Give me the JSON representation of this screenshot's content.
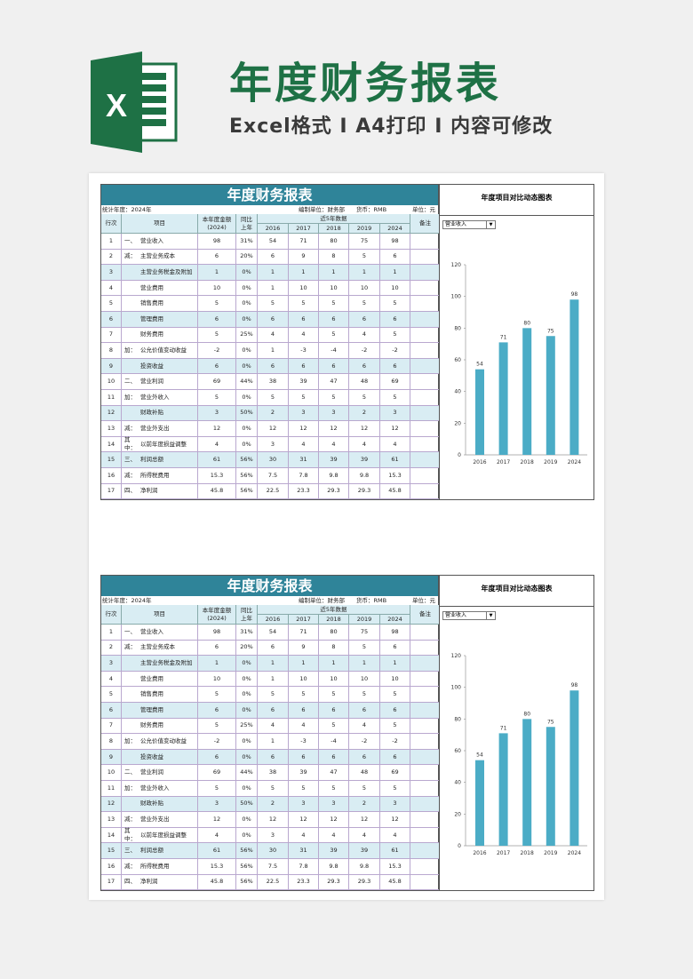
{
  "header": {
    "title": "年度财务报表",
    "subtitle": "Excel格式 I A4打印 I 内容可修改",
    "logo_letter": "X",
    "brand_color": "#1e7145"
  },
  "report": {
    "title": "年度财务报表",
    "stat_year": "统计年度：2024年",
    "unit_org": "编制单位：财务部",
    "currency": "货币：RMB",
    "unit": "单位：元",
    "columns": {
      "no": "行次",
      "item": "项目",
      "amount_l1": "本年度金额",
      "amount_l2": "(2024)",
      "yoy_l1": "同比",
      "yoy_l2": "上年",
      "recent": "近5年数据",
      "years": [
        "2016",
        "2017",
        "2018",
        "2019",
        "2024"
      ],
      "remark": "备注"
    },
    "rows": [
      {
        "no": "1",
        "prefix": "一、",
        "item": "营业收入",
        "amount": "98",
        "yoy": "31%",
        "vals": [
          "54",
          "71",
          "80",
          "75",
          "98"
        ]
      },
      {
        "no": "2",
        "prefix": "减：",
        "item": "主营业务成本",
        "amount": "6",
        "yoy": "20%",
        "vals": [
          "6",
          "9",
          "8",
          "5",
          "6"
        ]
      },
      {
        "no": "3",
        "prefix": "",
        "item": "主营业务税金及附加",
        "amount": "1",
        "yoy": "0%",
        "vals": [
          "1",
          "1",
          "1",
          "1",
          "1"
        ]
      },
      {
        "no": "4",
        "prefix": "",
        "item": "营业费用",
        "amount": "10",
        "yoy": "0%",
        "vals": [
          "1",
          "10",
          "10",
          "10",
          "10"
        ]
      },
      {
        "no": "5",
        "prefix": "",
        "item": "销售费用",
        "amount": "5",
        "yoy": "0%",
        "vals": [
          "5",
          "5",
          "5",
          "5",
          "5"
        ]
      },
      {
        "no": "6",
        "prefix": "",
        "item": "管理费用",
        "amount": "6",
        "yoy": "0%",
        "vals": [
          "6",
          "6",
          "6",
          "6",
          "6"
        ]
      },
      {
        "no": "7",
        "prefix": "",
        "item": "财务费用",
        "amount": "5",
        "yoy": "25%",
        "vals": [
          "4",
          "4",
          "5",
          "4",
          "5"
        ]
      },
      {
        "no": "8",
        "prefix": "加：",
        "item": "公允价值变动收益",
        "amount": "-2",
        "yoy": "0%",
        "vals": [
          "1",
          "-3",
          "-4",
          "-2",
          "-2"
        ]
      },
      {
        "no": "9",
        "prefix": "",
        "item": "投资收益",
        "amount": "6",
        "yoy": "0%",
        "vals": [
          "6",
          "6",
          "6",
          "6",
          "6"
        ]
      },
      {
        "no": "10",
        "prefix": "二、",
        "item": "营业利润",
        "amount": "69",
        "yoy": "44%",
        "vals": [
          "38",
          "39",
          "47",
          "48",
          "69"
        ]
      },
      {
        "no": "11",
        "prefix": "加：",
        "item": "营业外收入",
        "amount": "5",
        "yoy": "0%",
        "vals": [
          "5",
          "5",
          "5",
          "5",
          "5"
        ]
      },
      {
        "no": "12",
        "prefix": "",
        "item": "财政补贴",
        "amount": "3",
        "yoy": "50%",
        "vals": [
          "2",
          "3",
          "3",
          "2",
          "3"
        ]
      },
      {
        "no": "13",
        "prefix": "减：",
        "item": "营业外支出",
        "amount": "12",
        "yoy": "0%",
        "vals": [
          "12",
          "12",
          "12",
          "12",
          "12"
        ]
      },
      {
        "no": "14",
        "prefix": "其中：",
        "item": "以前年度损益调整",
        "amount": "4",
        "yoy": "0%",
        "vals": [
          "3",
          "4",
          "4",
          "4",
          "4"
        ]
      },
      {
        "no": "15",
        "prefix": "三、",
        "item": "利润总额",
        "amount": "61",
        "yoy": "56%",
        "vals": [
          "30",
          "31",
          "39",
          "39",
          "61"
        ]
      },
      {
        "no": "16",
        "prefix": "减：",
        "item": "所得税费用",
        "amount": "15.3",
        "yoy": "56%",
        "vals": [
          "7.5",
          "7.8",
          "9.8",
          "9.8",
          "15.3"
        ]
      },
      {
        "no": "17",
        "prefix": "四、",
        "item": "净利润",
        "amount": "45.8",
        "yoy": "56%",
        "vals": [
          "22.5",
          "23.3",
          "29.3",
          "29.3",
          "45.8"
        ]
      }
    ],
    "highlight_rows": [
      "3",
      "6",
      "9",
      "12",
      "15"
    ],
    "colors": {
      "title_bar": "#2f8499",
      "header_bg": "#d9edf3",
      "highlight_bg": "#d9edf3",
      "bar": "#4bacc6"
    }
  },
  "chart_panel": {
    "title": "年度项目对比动态图表",
    "selected": "营业收入"
  },
  "chart_data": {
    "type": "bar",
    "categories": [
      "2016",
      "2017",
      "2018",
      "2019",
      "2024"
    ],
    "values": [
      54,
      71,
      80,
      75,
      98
    ],
    "ylim": [
      0,
      120
    ],
    "yticks": [
      0,
      20,
      40,
      60,
      80,
      100,
      120
    ],
    "data_labels": true,
    "grid": false,
    "color": "#4bacc6"
  }
}
